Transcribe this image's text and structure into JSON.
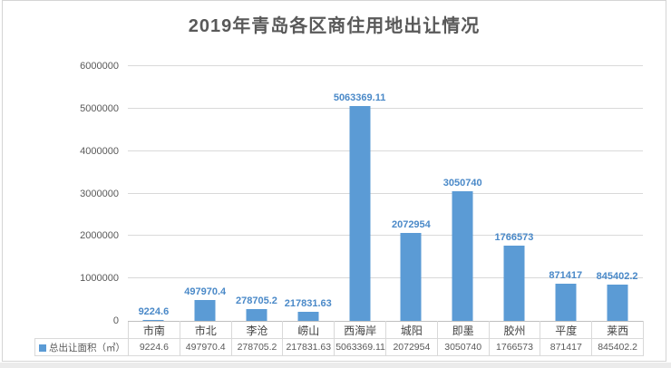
{
  "chart_data": {
    "type": "bar",
    "title": "2019年青岛各区商住用地出让情况",
    "categories": [
      "市南",
      "市北",
      "李沧",
      "崂山",
      "西海岸",
      "城阳",
      "即墨",
      "胶州",
      "平度",
      "莱西"
    ],
    "series": [
      {
        "name": "总出让面积（㎡）",
        "values": [
          9224.6,
          497970.4,
          278705.2,
          217831.63,
          5063369.11,
          2072954,
          3050740,
          1766573,
          871417,
          845402.2
        ]
      }
    ],
    "value_labels": [
      "9224.6",
      "497970.4",
      "278705.2",
      "217831.63",
      "5063369.11",
      "2072954",
      "3050740",
      "1766573",
      "871417",
      "845402.2"
    ],
    "ylim": [
      0,
      6000000
    ],
    "y_ticks": [
      0,
      1000000,
      2000000,
      3000000,
      4000000,
      5000000,
      6000000
    ],
    "grid": true,
    "data_labels": true,
    "data_table": true,
    "legend_position": "data-table-left",
    "colors": {
      "bar": "#5B9BD5",
      "data_label": "#4A89C8",
      "title": "#595959",
      "axis_text": "#595959",
      "category_text": "#404040",
      "gridline": "#D9D9D9",
      "axis_line": "#BFBFBF",
      "table_border": "#D9D9D9",
      "frame_border": "#D5D5D5",
      "background": "#FFFFFF"
    }
  }
}
